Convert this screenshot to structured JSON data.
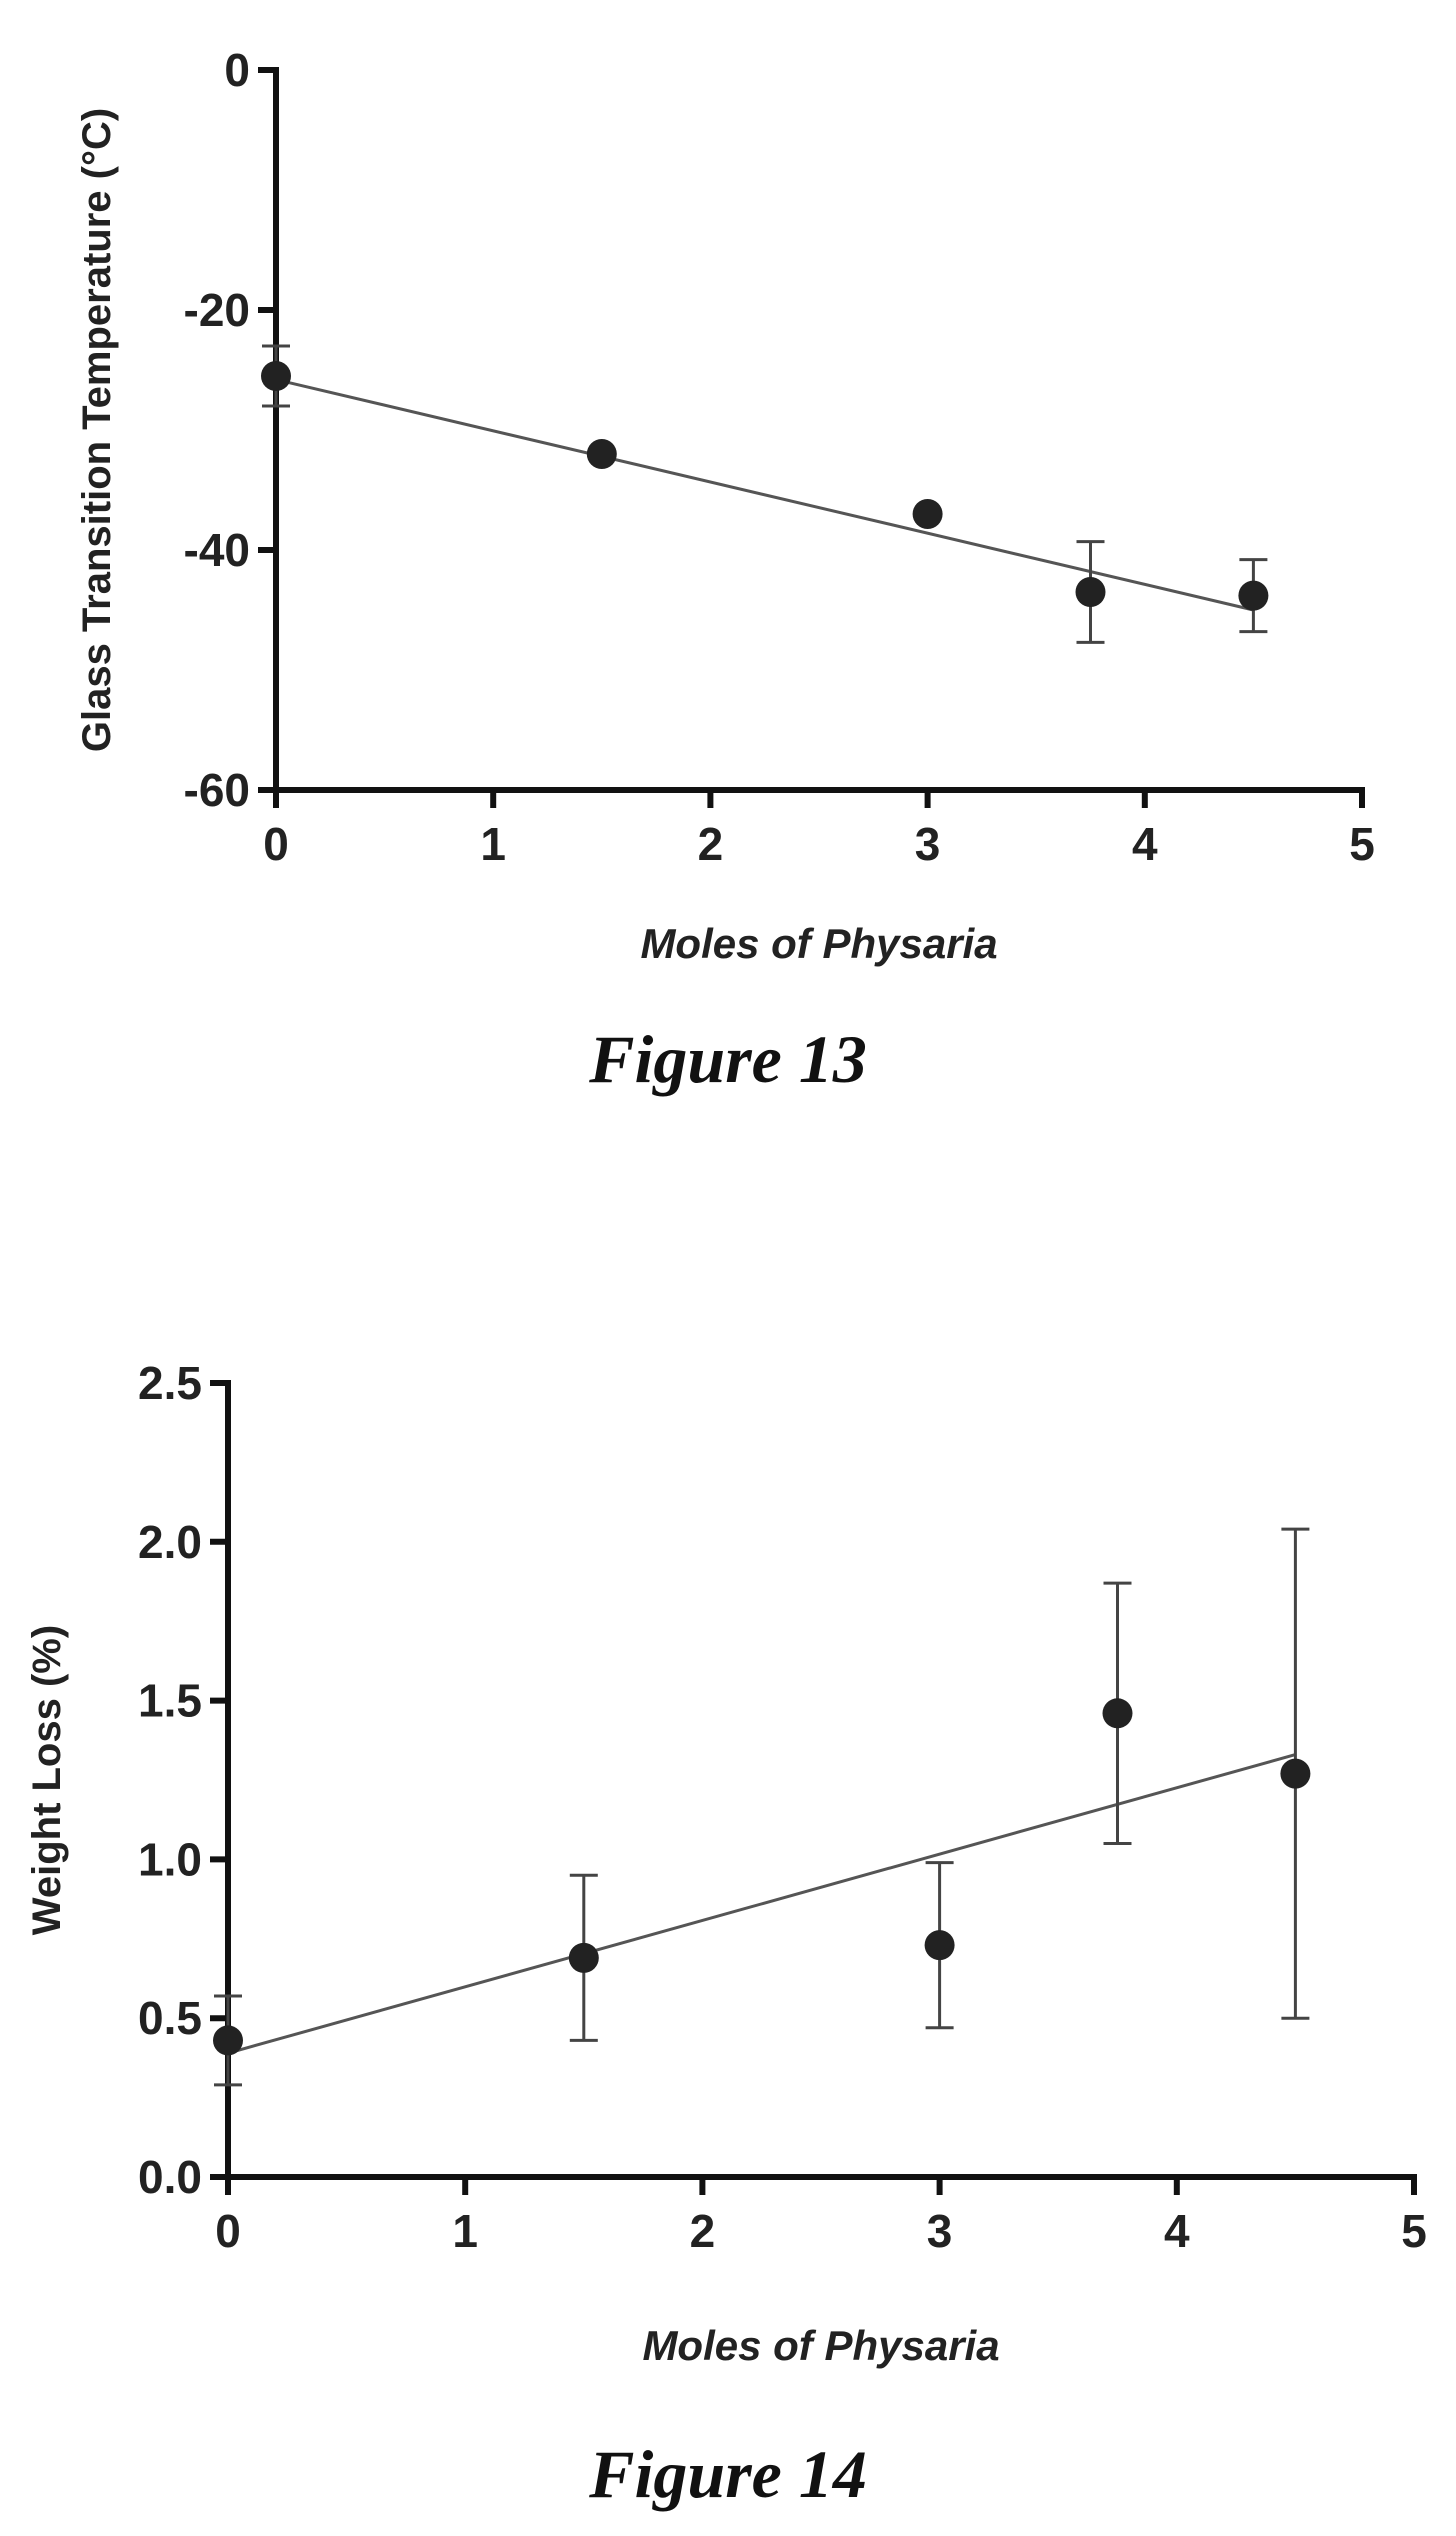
{
  "chart_data": [
    {
      "type": "scatter",
      "caption": "Figure 13",
      "xlabel": "Moles of Physaria",
      "ylabel": "Glass  Transition Temperature (°C)",
      "xlim": [
        0,
        5
      ],
      "ylim": [
        -60,
        0
      ],
      "xticks": [
        "0",
        "1",
        "2",
        "3",
        "4",
        "5"
      ],
      "yticks": [
        "0",
        "-20",
        "-40",
        "-60"
      ],
      "xtick_values": [
        0,
        1,
        2,
        3,
        4,
        5
      ],
      "ytick_values": [
        0,
        -20,
        -40,
        -60
      ],
      "grid": false,
      "points": [
        {
          "x": 0,
          "y": -25.5,
          "err": 2.5
        },
        {
          "x": 1.5,
          "y": -32,
          "err": 0
        },
        {
          "x": 3,
          "y": -37,
          "err": 0
        },
        {
          "x": 3.75,
          "y": -43.5,
          "err": 4.2
        },
        {
          "x": 4.5,
          "y": -43.8,
          "err": 3
        }
      ],
      "fit_line": {
        "x": [
          0,
          4.5
        ],
        "y": [
          -25.8,
          -45
        ]
      }
    },
    {
      "type": "scatter",
      "caption": "Figure 14",
      "xlabel": "Moles of Physaria",
      "ylabel": "Weight Loss (%)",
      "xlim": [
        0,
        5
      ],
      "ylim": [
        0,
        2.5
      ],
      "xticks": [
        "0",
        "1",
        "2",
        "3",
        "4",
        "5"
      ],
      "yticks": [
        "0.0",
        "0.5",
        "1.0",
        "1.5",
        "2.0",
        "2.5"
      ],
      "xtick_values": [
        0,
        1,
        2,
        3,
        4,
        5
      ],
      "ytick_values": [
        0,
        0.5,
        1.0,
        1.5,
        2.0,
        2.5
      ],
      "grid": false,
      "points": [
        {
          "x": 0,
          "y": 0.43,
          "err": 0.14
        },
        {
          "x": 1.5,
          "y": 0.69,
          "err": 0.26
        },
        {
          "x": 3,
          "y": 0.73,
          "err": 0.26
        },
        {
          "x": 3.75,
          "y": 1.46,
          "err": 0.41
        },
        {
          "x": 4.5,
          "y": 1.27,
          "err": 0.77
        }
      ],
      "fit_line": {
        "x": [
          0,
          4.5
        ],
        "y": [
          0.39,
          1.33
        ]
      }
    }
  ]
}
